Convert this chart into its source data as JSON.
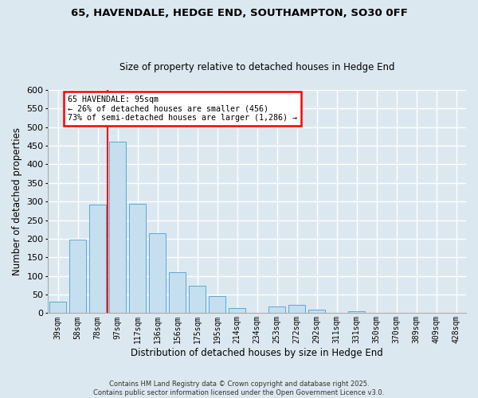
{
  "title": "65, HAVENDALE, HEDGE END, SOUTHAMPTON, SO30 0FF",
  "subtitle": "Size of property relative to detached houses in Hedge End",
  "xlabel": "Distribution of detached houses by size in Hedge End",
  "ylabel": "Number of detached properties",
  "bin_labels": [
    "39sqm",
    "58sqm",
    "78sqm",
    "97sqm",
    "117sqm",
    "136sqm",
    "156sqm",
    "175sqm",
    "195sqm",
    "214sqm",
    "234sqm",
    "253sqm",
    "272sqm",
    "292sqm",
    "311sqm",
    "331sqm",
    "350sqm",
    "370sqm",
    "389sqm",
    "409sqm",
    "428sqm"
  ],
  "bar_values": [
    30,
    197,
    291,
    461,
    295,
    215,
    111,
    73,
    46,
    13,
    0,
    19,
    22,
    9,
    0,
    5,
    0,
    0,
    0,
    0,
    1
  ],
  "bar_color": "#c5dff0",
  "bar_edge_color": "#5ba8d0",
  "vline_x_index": 3,
  "vline_color": "red",
  "annotation_title": "65 HAVENDALE: 95sqm",
  "annotation_line1": "← 26% of detached houses are smaller (456)",
  "annotation_line2": "73% of semi-detached houses are larger (1,286) →",
  "annotation_box_color": "white",
  "annotation_box_edge_color": "red",
  "ylim": [
    0,
    600
  ],
  "yticks": [
    0,
    50,
    100,
    150,
    200,
    250,
    300,
    350,
    400,
    450,
    500,
    550,
    600
  ],
  "footnote1": "Contains HM Land Registry data © Crown copyright and database right 2025.",
  "footnote2": "Contains public sector information licensed under the Open Government Licence v3.0.",
  "background_color": "#dce8f0",
  "grid_color": "#ffffff"
}
